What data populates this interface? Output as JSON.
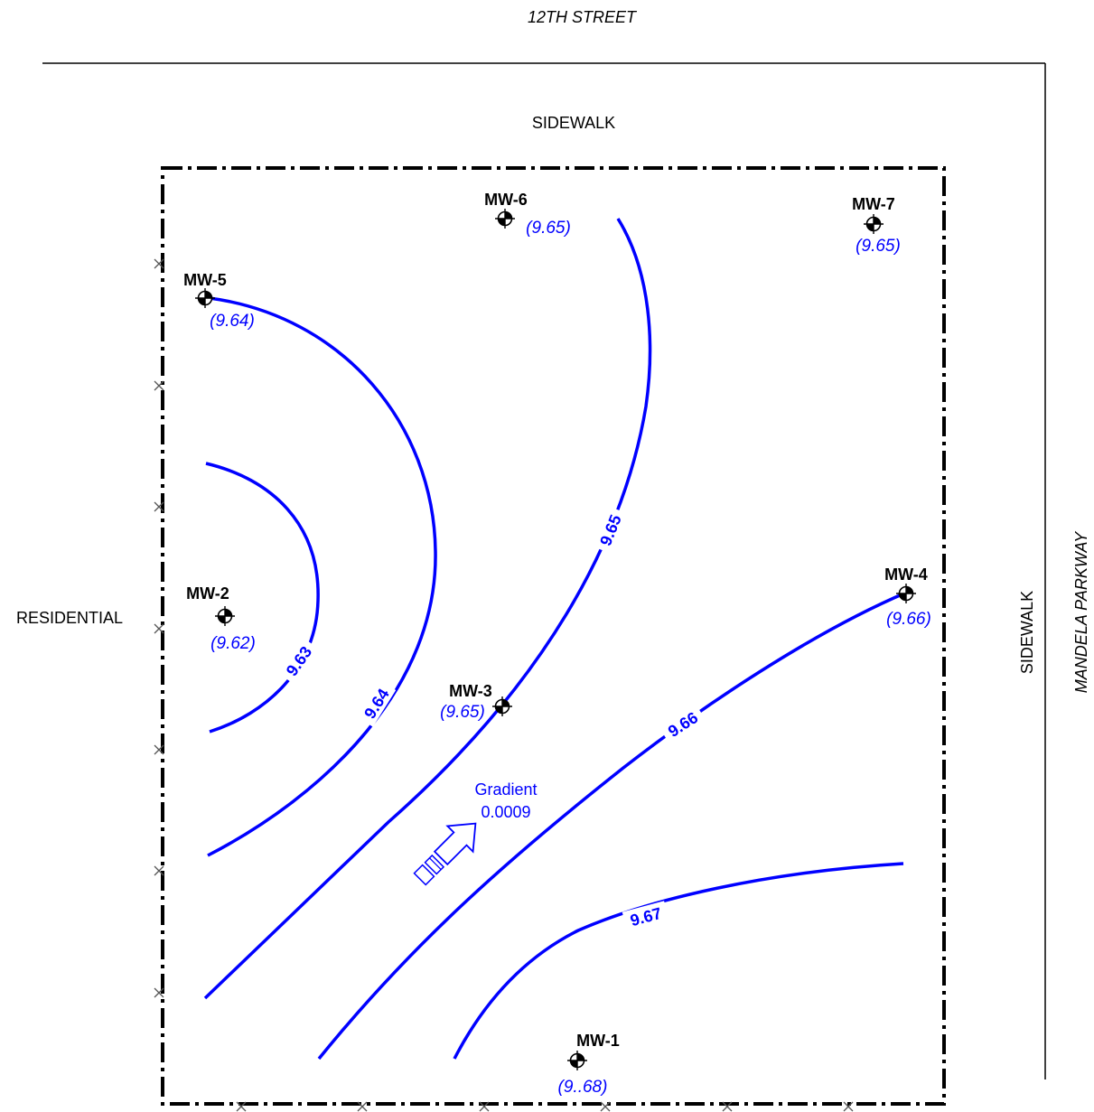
{
  "streets": {
    "north": "12TH STREET",
    "east": "MANDELA PARKWAY"
  },
  "labels": {
    "sidewalk_north": "SIDEWALK",
    "sidewalk_east": "SIDEWALK",
    "residential": "RESIDENTIAL"
  },
  "wells": [
    {
      "id": "MW-1",
      "value": "(9..68)"
    },
    {
      "id": "MW-2",
      "value": "(9.62)"
    },
    {
      "id": "MW-3",
      "value": "(9.65)"
    },
    {
      "id": "MW-4",
      "value": "(9.66)"
    },
    {
      "id": "MW-5",
      "value": "(9.64)"
    },
    {
      "id": "MW-6",
      "value": "(9.65)"
    },
    {
      "id": "MW-7",
      "value": "(9.65)"
    }
  ],
  "contours": [
    {
      "label": "9.63"
    },
    {
      "label": "9.64"
    },
    {
      "label": "9.65"
    },
    {
      "label": "9.66"
    },
    {
      "label": "9.67"
    }
  ],
  "gradient": {
    "title": "Gradient",
    "value": "0.0009"
  },
  "colors": {
    "contour": "#0000ff",
    "text": "#000000"
  }
}
